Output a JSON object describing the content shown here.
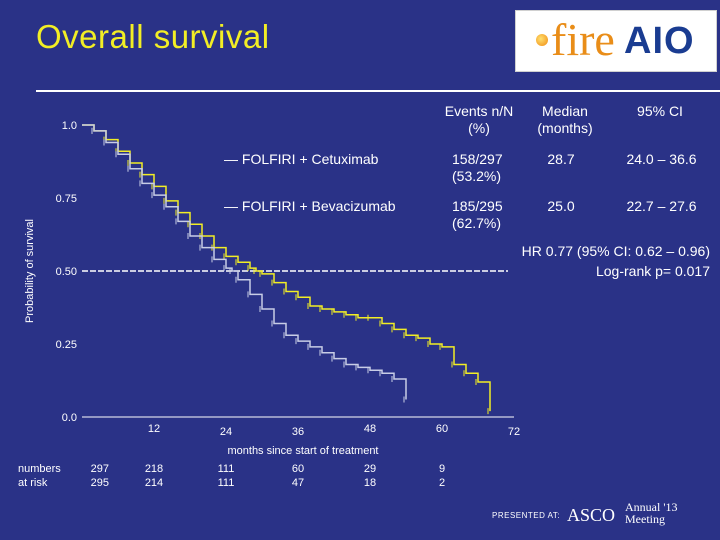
{
  "slide": {
    "title": "Overall survival",
    "logo_fire": "fire",
    "logo_aio": "AIO",
    "footer_presented": "PRESENTED AT:",
    "footer_asco": "ASCO",
    "footer_annual": "Annual '13",
    "footer_meeting": "Meeting"
  },
  "table": {
    "col_events": "Events n/N (%)",
    "col_median": "Median (months)",
    "col_ci": "95% CI",
    "rows": [
      {
        "name": "— FOLFIRI + Cetuximab",
        "events": "158/297 (53.2%)",
        "median": "28.7",
        "ci": "24.0 – 36.6"
      },
      {
        "name": "— FOLFIRI + Bevacizumab",
        "events": "185/295 (62.7%)",
        "median": "25.0",
        "ci": "22.7 – 27.6"
      }
    ],
    "hr": "HR 0.77 (95% CI: 0.62 – 0.96)",
    "logrank": "Log-rank p= 0.017"
  },
  "risk": {
    "label_numbers": "numbers",
    "label_atrisk": "at risk",
    "cetux": [
      "297",
      "218",
      "111",
      "60",
      "29",
      "9"
    ],
    "bev": [
      "295",
      "214",
      "111",
      "47",
      "18",
      "2"
    ]
  },
  "chart_data": {
    "type": "line",
    "title": "",
    "xlabel": "months since start of treatment",
    "ylabel": "Probability of survival",
    "xlim": [
      0,
      72
    ],
    "ylim": [
      0,
      1
    ],
    "x_ticks": [
      "12",
      "24",
      "36",
      "48",
      "60",
      "72"
    ],
    "y_ticks": [
      "0.0",
      "0.25",
      "0.50",
      "0.75",
      "1.0"
    ],
    "reference_line_y": 0.5,
    "colors": {
      "cetuximab": "#f2ee25",
      "bevacizumab": "#c8cde6",
      "reference": "#ffffff"
    },
    "series": [
      {
        "name": "FOLFIRI + Cetuximab",
        "x": [
          0,
          2,
          4,
          6,
          8,
          10,
          12,
          14,
          16,
          18,
          20,
          22,
          24,
          26,
          28,
          29,
          30,
          32,
          34,
          36,
          38,
          40,
          42,
          44,
          46,
          48,
          50,
          52,
          54,
          56,
          58,
          60,
          62,
          64,
          66,
          68
        ],
        "y": [
          1.0,
          0.98,
          0.95,
          0.91,
          0.87,
          0.83,
          0.79,
          0.74,
          0.7,
          0.66,
          0.62,
          0.58,
          0.55,
          0.53,
          0.51,
          0.5,
          0.49,
          0.46,
          0.43,
          0.41,
          0.38,
          0.37,
          0.36,
          0.35,
          0.34,
          0.34,
          0.32,
          0.3,
          0.28,
          0.27,
          0.25,
          0.24,
          0.18,
          0.15,
          0.12,
          0.02
        ]
      },
      {
        "name": "FOLFIRI + Bevacizumab",
        "x": [
          0,
          2,
          4,
          6,
          8,
          10,
          12,
          14,
          16,
          18,
          20,
          22,
          24,
          25,
          26,
          28,
          30,
          32,
          34,
          36,
          38,
          40,
          42,
          44,
          46,
          48,
          50,
          52,
          54
        ],
        "y": [
          1.0,
          0.98,
          0.94,
          0.9,
          0.85,
          0.8,
          0.76,
          0.72,
          0.67,
          0.62,
          0.58,
          0.54,
          0.51,
          0.5,
          0.47,
          0.42,
          0.37,
          0.32,
          0.28,
          0.26,
          0.24,
          0.22,
          0.2,
          0.18,
          0.17,
          0.16,
          0.15,
          0.13,
          0.06
        ]
      }
    ]
  }
}
